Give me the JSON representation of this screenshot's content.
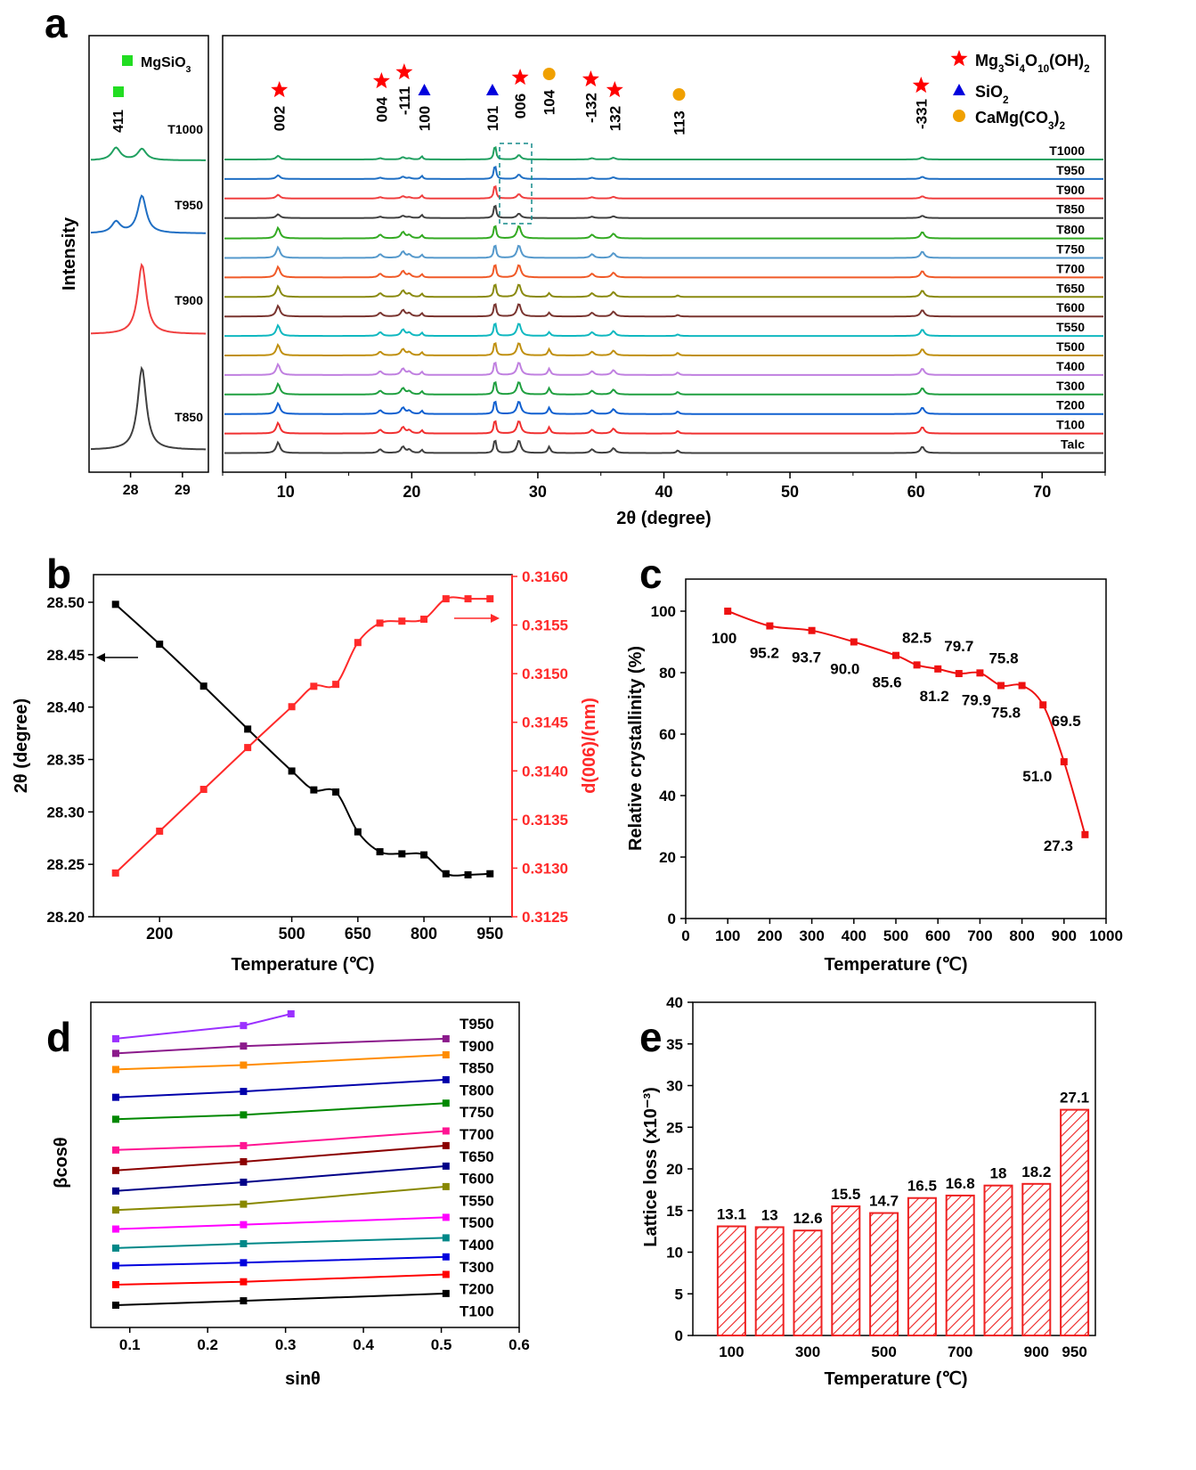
{
  "chart_data": [
    {
      "panel": "a",
      "type": "line",
      "title": "",
      "inset": {
        "xlabel": "",
        "ylabel": "Intensity",
        "xlim": [
          27.2,
          29.5
        ],
        "xticks": [
          28,
          29
        ],
        "legend": "MgSiO3",
        "peak_label": "411",
        "curves": [
          {
            "name": "T1000",
            "color": "#20a060",
            "peaks": [
              [
                27.72,
                0.5
              ],
              [
                28.22,
                0.45
              ]
            ]
          },
          {
            "name": "T950",
            "color": "#1f6fc4",
            "peaks": [
              [
                27.72,
                0.3
              ],
              [
                28.22,
                1.0
              ]
            ]
          },
          {
            "name": "T900",
            "color": "#f04040",
            "peaks": [
              [
                28.22,
                1.0
              ]
            ]
          },
          {
            "name": "T850",
            "color": "#404040",
            "peaks": [
              [
                28.22,
                1.0
              ]
            ]
          }
        ]
      },
      "xlabel": "2θ (degree)",
      "ylabel": "",
      "xlim": [
        5,
        75
      ],
      "xticks": [
        10,
        20,
        30,
        40,
        50,
        60,
        70
      ],
      "legend": [
        {
          "label": "Mg3Si4O10(OH)2",
          "symbol": "star",
          "color": "#ff0000"
        },
        {
          "label": "SiO2",
          "symbol": "triangle",
          "color": "#0000dd"
        },
        {
          "label": "CaMg(CO3)2",
          "symbol": "circle",
          "color": "#f0a000"
        }
      ],
      "peak_labels": [
        {
          "x": 9.5,
          "label": "002",
          "phase": "talc"
        },
        {
          "x": 17.6,
          "label": "004",
          "phase": "talc"
        },
        {
          "x": 19.4,
          "label": "-111",
          "phase": "talc"
        },
        {
          "x": 21.0,
          "label": "100",
          "phase": "quartz"
        },
        {
          "x": 26.4,
          "label": "101",
          "phase": "quartz"
        },
        {
          "x": 28.6,
          "label": "006",
          "phase": "talc"
        },
        {
          "x": 30.9,
          "label": "104",
          "phase": "dolomite"
        },
        {
          "x": 34.2,
          "label": "-132",
          "phase": "talc"
        },
        {
          "x": 36.1,
          "label": "132",
          "phase": "talc"
        },
        {
          "x": 41.2,
          "label": "113",
          "phase": "dolomite"
        },
        {
          "x": 60.4,
          "label": "-331",
          "phase": "talc"
        }
      ],
      "series": [
        {
          "name": "T1000",
          "color": "#20a060"
        },
        {
          "name": "T950",
          "color": "#1f6fc4"
        },
        {
          "name": "T900",
          "color": "#f04040"
        },
        {
          "name": "T850",
          "color": "#404040"
        },
        {
          "name": "T800",
          "color": "#33aa22"
        },
        {
          "name": "T750",
          "color": "#5599cc"
        },
        {
          "name": "T700",
          "color": "#f05a28"
        },
        {
          "name": "T650",
          "color": "#8a8a10"
        },
        {
          "name": "T600",
          "color": "#7a3530"
        },
        {
          "name": "T550",
          "color": "#10b8c0"
        },
        {
          "name": "T500",
          "color": "#c09010"
        },
        {
          "name": "T400",
          "color": "#c080e0"
        },
        {
          "name": "T300",
          "color": "#20a040"
        },
        {
          "name": "T200",
          "color": "#1060d0"
        },
        {
          "name": "T100",
          "color": "#f03030"
        },
        {
          "name": "Talc",
          "color": "#404040"
        }
      ]
    },
    {
      "panel": "b",
      "type": "line",
      "xlabel": "Temperature (℃)",
      "ylabel": "2θ (degree)",
      "y2label": "d(006)/(nm)",
      "xlim": [
        50,
        1000
      ],
      "xticks": [
        200,
        500,
        650,
        800,
        950
      ],
      "ylim": [
        28.2,
        28.52
      ],
      "yticks": [
        "28.20",
        "28.25",
        "28.30",
        "28.35",
        "28.40",
        "28.45",
        "28.50"
      ],
      "y2lim": [
        0.3125,
        0.3161
      ],
      "y2ticks": [
        "0.3125",
        "0.3130",
        "0.3135",
        "0.3140",
        "0.3145",
        "0.3150",
        "0.3155",
        "0.3160"
      ],
      "x": [
        100,
        200,
        300,
        400,
        500,
        550,
        600,
        650,
        700,
        750,
        800,
        850,
        900,
        950
      ],
      "series": [
        {
          "name": "2θ",
          "axis": "left",
          "color": "#000000",
          "values": [
            28.498,
            28.46,
            28.42,
            28.379,
            28.339,
            28.321,
            28.319,
            28.281,
            28.262,
            28.26,
            28.259,
            28.241,
            28.24,
            28.241
          ]
        },
        {
          "name": "d(006)",
          "axis": "right",
          "color": "#ff2a2a",
          "values": [
            0.31295,
            0.31338,
            0.31381,
            0.31424,
            0.31466,
            0.31487,
            0.31489,
            0.31532,
            0.31552,
            0.31554,
            0.31556,
            0.31577,
            0.31577,
            0.31577
          ]
        }
      ]
    },
    {
      "panel": "c",
      "type": "line",
      "xlabel": "Temperature (℃)",
      "ylabel": "Relative crystallinity (%)",
      "xlim": [
        0,
        1000
      ],
      "xticks": [
        0,
        100,
        200,
        300,
        400,
        500,
        600,
        700,
        800,
        900,
        1000
      ],
      "ylim": [
        0,
        110
      ],
      "yticks": [
        0,
        20,
        40,
        60,
        80,
        100
      ],
      "color": "#ee1111",
      "x": [
        100,
        200,
        300,
        400,
        500,
        550,
        600,
        650,
        700,
        750,
        800,
        850,
        900,
        950
      ],
      "values": [
        100,
        95.2,
        93.7,
        90.0,
        85.6,
        82.5,
        81.2,
        79.7,
        79.9,
        75.8,
        75.8,
        69.5,
        51.0,
        27.3
      ],
      "data_labels": [
        "100",
        "95.2",
        "93.7",
        "90.0",
        "85.6",
        "82.5",
        "81.2",
        "79.7",
        "79.9",
        "75.8",
        "75.8",
        "69.5",
        "51.0",
        "27.3"
      ]
    },
    {
      "panel": "d",
      "type": "line",
      "xlabel": "sinθ",
      "ylabel": "βcosθ",
      "xlim": [
        0.05,
        0.6
      ],
      "xticks": [
        "0.1",
        "0.2",
        "0.3",
        "0.4",
        "0.5",
        "0.6"
      ],
      "series": [
        {
          "name": "T950",
          "color": "#9b30ff",
          "x": [
            0.082,
            0.246,
            0.307
          ],
          "values": [
            3.1,
            3.55,
            3.95
          ]
        },
        {
          "name": "T900",
          "color": "#8b1a8b",
          "x": [
            0.082,
            0.246,
            0.506
          ],
          "values": [
            2.6,
            2.85,
            3.1
          ]
        },
        {
          "name": "T850",
          "color": "#ff8c00",
          "x": [
            0.082,
            0.246,
            0.506
          ],
          "values": [
            2.05,
            2.2,
            2.55
          ]
        },
        {
          "name": "T800",
          "color": "#0000aa",
          "x": [
            0.082,
            0.246,
            0.506
          ],
          "values": [
            1.1,
            1.3,
            1.7
          ]
        },
        {
          "name": "T750",
          "color": "#008800",
          "x": [
            0.082,
            0.246,
            0.506
          ],
          "values": [
            0.35,
            0.5,
            0.9
          ]
        },
        {
          "name": "T700",
          "color": "#ff1493",
          "x": [
            0.082,
            0.246,
            0.506
          ],
          "values": [
            -0.7,
            -0.55,
            -0.05
          ]
        },
        {
          "name": "T650",
          "color": "#8b0000",
          "x": [
            0.082,
            0.246,
            0.506
          ],
          "values": [
            -1.4,
            -1.1,
            -0.55
          ]
        },
        {
          "name": "T600",
          "color": "#000088",
          "x": [
            0.082,
            0.246,
            0.506
          ],
          "values": [
            -2.1,
            -1.8,
            -1.25
          ]
        },
        {
          "name": "T550",
          "color": "#888800",
          "x": [
            0.082,
            0.246,
            0.506
          ],
          "values": [
            -2.75,
            -2.55,
            -1.95
          ]
        },
        {
          "name": "T500",
          "color": "#ff00ff",
          "x": [
            0.082,
            0.246,
            0.506
          ],
          "values": [
            -3.4,
            -3.25,
            -3.0
          ]
        },
        {
          "name": "T400",
          "color": "#008888",
          "x": [
            0.082,
            0.246,
            0.506
          ],
          "values": [
            -4.05,
            -3.9,
            -3.7
          ]
        },
        {
          "name": "T300",
          "color": "#0000dd",
          "x": [
            0.082,
            0.246,
            0.506
          ],
          "values": [
            -4.65,
            -4.55,
            -4.35
          ]
        },
        {
          "name": "T200",
          "color": "#ff0000",
          "x": [
            0.082,
            0.246,
            0.506
          ],
          "values": [
            -5.3,
            -5.2,
            -4.95
          ]
        },
        {
          "name": "T100",
          "color": "#000000",
          "x": [
            0.082,
            0.246,
            0.506
          ],
          "values": [
            -6.0,
            -5.85,
            -5.6
          ]
        }
      ]
    },
    {
      "panel": "e",
      "type": "bar",
      "xlabel": "Temperature (℃)",
      "ylabel": "Lattice loss (x10⁻³)",
      "ylim": [
        0,
        40
      ],
      "yticks": [
        0,
        5,
        10,
        15,
        20,
        25,
        30,
        35,
        40
      ],
      "categories": [
        "100",
        "200",
        "300",
        "400",
        "500",
        "600",
        "700",
        "800",
        "900",
        "950"
      ],
      "xtick_labels": [
        "100",
        "",
        "300",
        "",
        "500",
        "",
        "700",
        "",
        "900",
        "950"
      ],
      "values": [
        13.1,
        13,
        12.6,
        15.5,
        14.7,
        16.5,
        16.8,
        18,
        18.2,
        27.1
      ],
      "data_labels": [
        "13.1",
        "13",
        "12.6",
        "15.5",
        "14.7",
        "16.5",
        "16.8",
        "18",
        "18.2",
        "27.1"
      ],
      "color": "#ee2222"
    }
  ]
}
